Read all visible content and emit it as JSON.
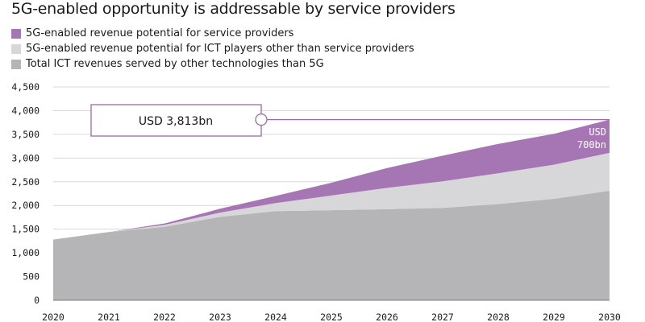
{
  "chart_data": {
    "type": "area",
    "stacked": true,
    "title": "5G-enabled opportunity is addressable by service providers",
    "xlabel": "",
    "ylabel": "",
    "x": [
      "2020",
      "2021",
      "2022",
      "2023",
      "2024",
      "2025",
      "2026",
      "2027",
      "2028",
      "2029",
      "2030"
    ],
    "ylim": [
      0,
      4500
    ],
    "yticks": [
      0,
      500,
      1000,
      1500,
      2000,
      2500,
      3000,
      3500,
      4000,
      4500
    ],
    "ytick_labels": [
      "0",
      "500",
      "1,000",
      "1,500",
      "2,000",
      "2,500",
      "3,000",
      "3,500",
      "4,000",
      "4,500"
    ],
    "grid": true,
    "legend_position": "top-left",
    "series": [
      {
        "name": "Total ICT revenues served by other technologies than 5G",
        "color": "#b5b5b8",
        "values": [
          1280,
          1440,
          1550,
          1760,
          1880,
          1900,
          1920,
          1950,
          2030,
          2140,
          2310
        ]
      },
      {
        "name": "5G-enabled revenue potential for ICT players other than service providers",
        "color": "#d7d7d9",
        "values": [
          0,
          0,
          40,
          90,
          170,
          310,
          450,
          560,
          650,
          720,
          800
        ]
      },
      {
        "name": "5G-enabled revenue potential for service providers",
        "color": "#a676b4",
        "values": [
          0,
          0,
          30,
          80,
          150,
          270,
          420,
          540,
          620,
          650,
          700
        ]
      }
    ],
    "annotations": {
      "callout": "USD 3,813bn",
      "end_label_line1": "USD",
      "end_label_line2": "700bn"
    }
  }
}
